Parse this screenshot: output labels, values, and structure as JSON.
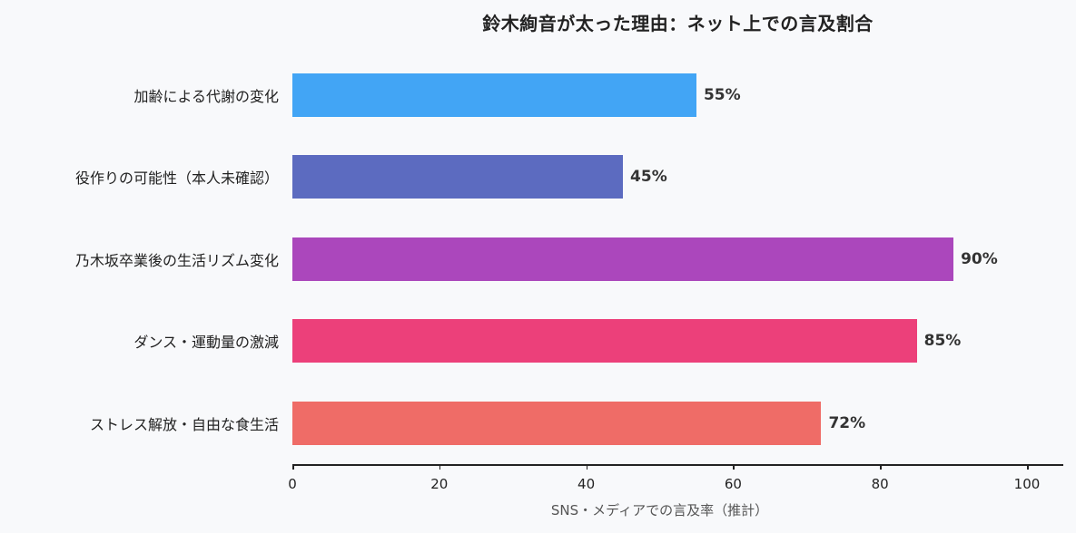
{
  "chart_data": {
    "type": "bar",
    "orientation": "horizontal",
    "title": "鈴木絢音が太った理由：ネット上での言及割合",
    "xlabel": "SNS・メディアでの言及率（推計）",
    "ylabel": "",
    "xlim": [
      0,
      105
    ],
    "xticks": [
      0,
      20,
      40,
      60,
      80,
      100
    ],
    "grid": false,
    "legend": null,
    "categories": [
      "加齢による代謝の変化",
      "役作りの可能性（本人未確認）",
      "乃木坂卒業後の生活リズム変化",
      "ダンス・運動量の激減",
      "ストレス解放・自由な食生活"
    ],
    "values": [
      55,
      45,
      90,
      85,
      72
    ],
    "value_labels": [
      "55%",
      "45%",
      "90%",
      "85%",
      "72%"
    ],
    "colors": [
      "#42a5f5",
      "#5c6bc0",
      "#ab47bc",
      "#ec407a",
      "#ef6c67"
    ]
  },
  "background": "#f8f9fb"
}
